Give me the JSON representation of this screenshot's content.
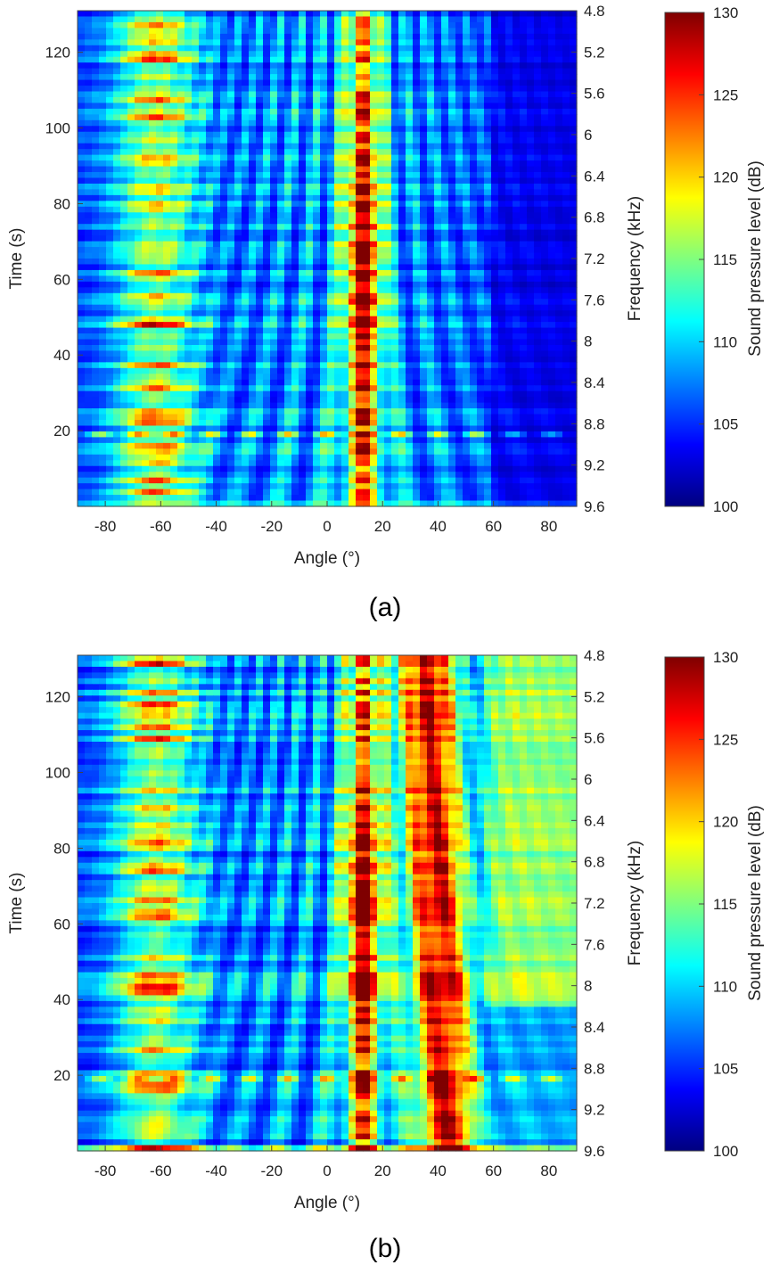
{
  "colors": {
    "colormap": "jet",
    "jet_stops": [
      "#00007f",
      "#0000ff",
      "#007fff",
      "#00ffff",
      "#7fff7f",
      "#ffff00",
      "#ff7f00",
      "#ff0000",
      "#7f0000"
    ]
  },
  "chart_data": [
    {
      "type": "heatmap",
      "panel_label": "(a)",
      "xlabel": "Angle (°)",
      "ylabel": "Time (s)",
      "y2label": "Frequency (kHz)",
      "colorbar_label": "Sound pressure level (dB)",
      "xlim": [
        -90,
        90
      ],
      "ylim": [
        0,
        131
      ],
      "x_ticks": [
        -80,
        -60,
        -40,
        -20,
        0,
        20,
        40,
        60,
        80
      ],
      "y_ticks": [
        20,
        40,
        60,
        80,
        100,
        120
      ],
      "y2_ticks": [
        "4.8",
        "5.2",
        "5.6",
        "6",
        "6.4",
        "6.8",
        "7.2",
        "7.6",
        "8",
        "8.4",
        "8.8",
        "9.2",
        "9.6"
      ],
      "clim": [
        100,
        130
      ],
      "colorbar_ticks": [
        100,
        105,
        110,
        115,
        120,
        125,
        130
      ],
      "description_features": {
        "main_beam_angle": 13,
        "secondary_beam_angle": null,
        "left_lobe_angle": -62
      }
    },
    {
      "type": "heatmap",
      "panel_label": "(b)",
      "xlabel": "Angle (°)",
      "ylabel": "Time (s)",
      "y2label": "Frequency (kHz)",
      "colorbar_label": "Sound pressure level (dB)",
      "xlim": [
        -90,
        90
      ],
      "ylim": [
        0,
        131
      ],
      "x_ticks": [
        -80,
        -60,
        -40,
        -20,
        0,
        20,
        40,
        60,
        80
      ],
      "y_ticks": [
        20,
        40,
        60,
        80,
        100,
        120
      ],
      "y2_ticks": [
        "4.8",
        "5.2",
        "5.6",
        "6",
        "6.4",
        "6.8",
        "7.2",
        "7.6",
        "8",
        "8.4",
        "8.8",
        "9.2",
        "9.6"
      ],
      "clim": [
        100,
        130
      ],
      "colorbar_ticks": [
        100,
        105,
        110,
        115,
        120,
        125,
        130
      ],
      "description_features": {
        "main_beam_angle": 13,
        "secondary_beam_angle": 40,
        "left_lobe_angle": -62
      }
    }
  ]
}
